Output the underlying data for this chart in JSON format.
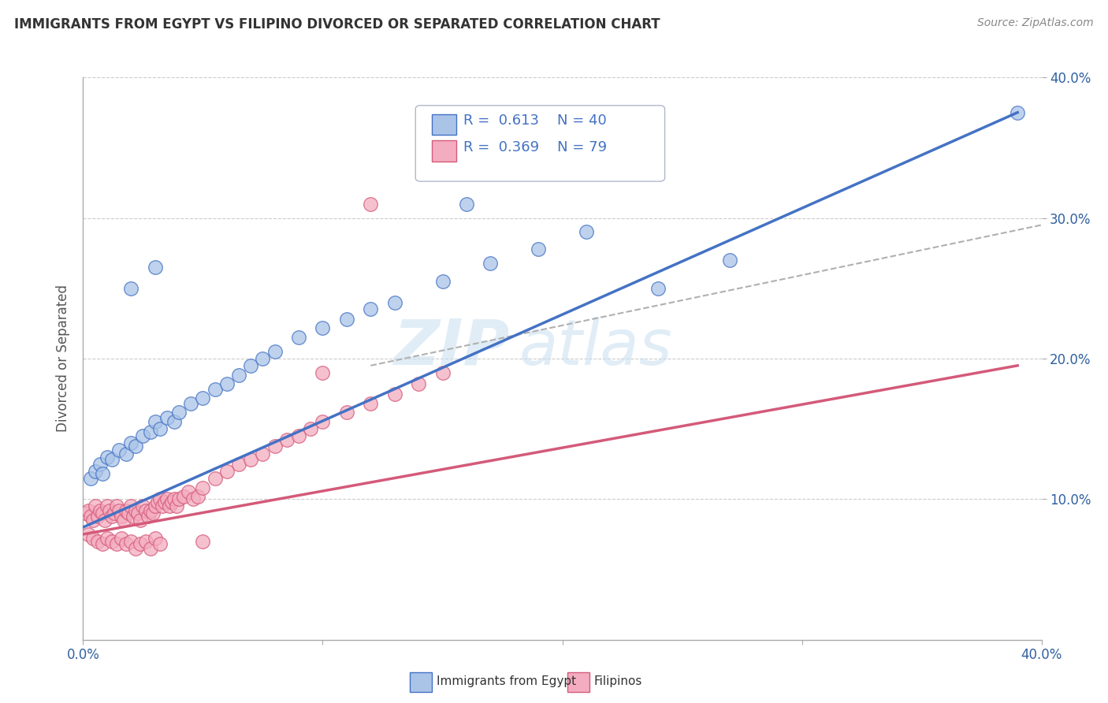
{
  "title": "IMMIGRANTS FROM EGYPT VS FILIPINO DIVORCED OR SEPARATED CORRELATION CHART",
  "source": "Source: ZipAtlas.com",
  "ylabel": "Divorced or Separated",
  "legend_series": [
    {
      "label": "Immigrants from Egypt",
      "R": "0.613",
      "N": "40",
      "color": "#aac4e8",
      "line_color": "#4472c4"
    },
    {
      "label": "Filipinos",
      "R": "0.369",
      "N": "79",
      "color": "#f4adc0",
      "line_color": "#d45a7a"
    }
  ],
  "watermark_zip": "ZIP",
  "watermark_atlas": "atlas",
  "xmin": 0.0,
  "xmax": 0.4,
  "ymin": 0.0,
  "ymax": 0.4,
  "xtick_vals": [
    0.0,
    0.1,
    0.2,
    0.3,
    0.4
  ],
  "xtick_labels": [
    "0.0%",
    "",
    "",
    "",
    "40.0%"
  ],
  "ytick_vals": [
    0.1,
    0.2,
    0.3,
    0.4
  ],
  "ytick_labels_right": [
    "10.0%",
    "20.0%",
    "30.0%",
    "40.0%"
  ],
  "grid_color": "#cccccc",
  "bg_color": "#ffffff",
  "scatter_blue_x": [
    0.003,
    0.005,
    0.007,
    0.008,
    0.01,
    0.012,
    0.015,
    0.018,
    0.02,
    0.022,
    0.025,
    0.028,
    0.03,
    0.032,
    0.035,
    0.038,
    0.04,
    0.045,
    0.05,
    0.055,
    0.06,
    0.065,
    0.07,
    0.075,
    0.08,
    0.09,
    0.1,
    0.11,
    0.12,
    0.13,
    0.15,
    0.17,
    0.19,
    0.21,
    0.24,
    0.27,
    0.02,
    0.03,
    0.39,
    0.16
  ],
  "scatter_blue_y": [
    0.115,
    0.12,
    0.125,
    0.118,
    0.13,
    0.128,
    0.135,
    0.132,
    0.14,
    0.138,
    0.145,
    0.148,
    0.155,
    0.15,
    0.158,
    0.155,
    0.162,
    0.168,
    0.172,
    0.178,
    0.182,
    0.188,
    0.195,
    0.2,
    0.205,
    0.215,
    0.222,
    0.228,
    0.235,
    0.24,
    0.255,
    0.268,
    0.278,
    0.29,
    0.25,
    0.27,
    0.25,
    0.265,
    0.375,
    0.31
  ],
  "scatter_pink_x": [
    0.001,
    0.002,
    0.003,
    0.004,
    0.005,
    0.006,
    0.007,
    0.008,
    0.009,
    0.01,
    0.011,
    0.012,
    0.013,
    0.014,
    0.015,
    0.016,
    0.017,
    0.018,
    0.019,
    0.02,
    0.021,
    0.022,
    0.023,
    0.024,
    0.025,
    0.026,
    0.027,
    0.028,
    0.029,
    0.03,
    0.031,
    0.032,
    0.033,
    0.034,
    0.035,
    0.036,
    0.037,
    0.038,
    0.039,
    0.04,
    0.042,
    0.044,
    0.046,
    0.048,
    0.05,
    0.055,
    0.06,
    0.065,
    0.07,
    0.075,
    0.08,
    0.085,
    0.09,
    0.095,
    0.1,
    0.11,
    0.12,
    0.13,
    0.14,
    0.15,
    0.002,
    0.004,
    0.006,
    0.008,
    0.01,
    0.012,
    0.014,
    0.016,
    0.018,
    0.02,
    0.022,
    0.024,
    0.026,
    0.028,
    0.03,
    0.032,
    0.05,
    0.1,
    0.12
  ],
  "scatter_pink_y": [
    0.09,
    0.092,
    0.088,
    0.085,
    0.095,
    0.088,
    0.092,
    0.09,
    0.085,
    0.095,
    0.092,
    0.088,
    0.09,
    0.095,
    0.092,
    0.088,
    0.085,
    0.092,
    0.09,
    0.095,
    0.088,
    0.092,
    0.09,
    0.085,
    0.095,
    0.092,
    0.088,
    0.092,
    0.09,
    0.095,
    0.098,
    0.1,
    0.095,
    0.098,
    0.1,
    0.095,
    0.098,
    0.1,
    0.095,
    0.1,
    0.102,
    0.105,
    0.1,
    0.102,
    0.108,
    0.115,
    0.12,
    0.125,
    0.128,
    0.132,
    0.138,
    0.142,
    0.145,
    0.15,
    0.155,
    0.162,
    0.168,
    0.175,
    0.182,
    0.19,
    0.075,
    0.072,
    0.07,
    0.068,
    0.072,
    0.07,
    0.068,
    0.072,
    0.068,
    0.07,
    0.065,
    0.068,
    0.07,
    0.065,
    0.072,
    0.068,
    0.07,
    0.19,
    0.31
  ],
  "blue_line_x": [
    0.0,
    0.39
  ],
  "blue_line_y": [
    0.08,
    0.375
  ],
  "pink_line_x": [
    0.0,
    0.39
  ],
  "pink_line_y": [
    0.075,
    0.195
  ],
  "dashed_line_x": [
    0.12,
    0.4
  ],
  "dashed_line_y": [
    0.195,
    0.295
  ]
}
